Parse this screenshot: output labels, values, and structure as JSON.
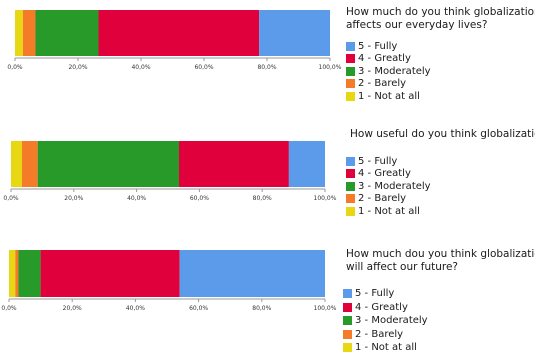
{
  "colors": {
    "fully": "#5b9bea",
    "greatly": "#e0003c",
    "moderately": "#289a2a",
    "barely": "#f47b28",
    "not_at_all": "#e8d814",
    "axis": "#999999"
  },
  "chart_data": [
    {
      "type": "bar",
      "orientation": "horizontal",
      "stacked": true,
      "title_lines": [
        "How much do you think globalization",
        "affects our everyday lives?"
      ],
      "xlim": [
        0,
        100
      ],
      "x_ticks": [
        "0,0%",
        "20,0%",
        "40,0%",
        "60,0%",
        "80,0%",
        "100,0%"
      ],
      "legend_position": "right",
      "series": [
        {
          "name": "1 - Not at all",
          "value": 2.5
        },
        {
          "name": "2 - Barely",
          "value": 4
        },
        {
          "name": "3 - Moderately",
          "value": 20
        },
        {
          "name": "4 - Greatly",
          "value": 51
        },
        {
          "name": "5 - Fully",
          "value": 22.5
        }
      ],
      "legend": [
        "5 - Fully",
        "4 - Greatly",
        "3 - Moderately",
        "2 - Barely",
        "1 - Not at all"
      ]
    },
    {
      "type": "bar",
      "orientation": "horizontal",
      "stacked": true,
      "title_lines": [
        "How useful do you think globalization"
      ],
      "xlim": [
        0,
        100
      ],
      "x_ticks": [
        "0,0%",
        "20,0%",
        "40,0%",
        "60,0%",
        "80,0%",
        "100,0%"
      ],
      "legend_position": "right",
      "series": [
        {
          "name": "1 - Not at all",
          "value": 3.5
        },
        {
          "name": "2 - Barely",
          "value": 5
        },
        {
          "name": "3 - Moderately",
          "value": 45
        },
        {
          "name": "4 - Greatly",
          "value": 35
        },
        {
          "name": "5 - Fully",
          "value": 11.5
        }
      ],
      "legend": [
        "5 - Fully",
        "4 - Greatly",
        "3 - Moderately",
        "2 - Barely",
        "1 - Not at all"
      ]
    },
    {
      "type": "bar",
      "orientation": "horizontal",
      "stacked": true,
      "title_lines": [
        "How much dou you think globalization",
        "will affect our future?"
      ],
      "xlim": [
        0,
        100
      ],
      "x_ticks": [
        "0,0%",
        "20,0%",
        "40,0%",
        "60,0%",
        "80,0%",
        "100,0%"
      ],
      "legend_position": "right",
      "series": [
        {
          "name": "1 - Not at all",
          "value": 2
        },
        {
          "name": "2 - Barely",
          "value": 1
        },
        {
          "name": "3 - Moderately",
          "value": 7
        },
        {
          "name": "4 - Greatly",
          "value": 44
        },
        {
          "name": "5 - Fully",
          "value": 46
        }
      ],
      "legend": [
        "5 - Fully",
        "4 - Greatly",
        "3 - Moderately",
        "2 - Barely",
        "1 - Not at all"
      ]
    }
  ]
}
